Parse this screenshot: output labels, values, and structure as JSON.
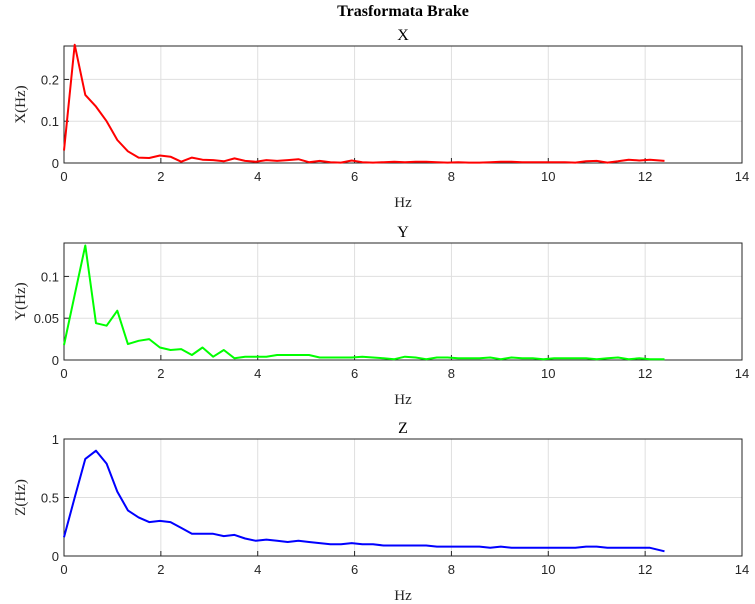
{
  "figure_title": "Trasformata Brake",
  "chart_data": [
    {
      "type": "line",
      "title": "X",
      "xlabel": "Hz",
      "ylabel": "X(Hz)",
      "xlim": [
        0,
        14
      ],
      "ylim": [
        0,
        0.28
      ],
      "xticks": [
        "0",
        "2",
        "4",
        "6",
        "8",
        "10",
        "12",
        "14"
      ],
      "yticks": [
        "0",
        "0.1",
        "0.2"
      ],
      "grid": true,
      "series": [
        {
          "color": "#ff0000",
          "x": [
            0,
            0.22,
            0.44,
            0.66,
            0.88,
            1.1,
            1.32,
            1.54,
            1.76,
            1.98,
            2.2,
            2.42,
            2.64,
            2.86,
            3.08,
            3.3,
            3.52,
            3.74,
            3.96,
            4.18,
            4.4,
            4.62,
            4.84,
            5.06,
            5.28,
            5.5,
            5.72,
            5.94,
            6.16,
            6.38,
            6.6,
            6.82,
            7.04,
            7.26,
            7.48,
            7.7,
            7.92,
            8.14,
            8.36,
            8.58,
            8.8,
            9.02,
            9.24,
            9.46,
            9.68,
            9.9,
            10.12,
            10.34,
            10.56,
            10.78,
            11.0,
            11.22,
            11.44,
            11.66,
            11.88,
            12.1,
            12.4
          ],
          "values": [
            0.03,
            0.283,
            0.163,
            0.135,
            0.1,
            0.055,
            0.028,
            0.013,
            0.012,
            0.018,
            0.015,
            0.003,
            0.013,
            0.008,
            0.007,
            0.004,
            0.011,
            0.005,
            0.003,
            0.007,
            0.005,
            0.007,
            0.009,
            0.002,
            0.005,
            0.002,
            0.001,
            0.006,
            0.002,
            0.001,
            0.002,
            0.003,
            0.002,
            0.003,
            0.003,
            0.002,
            0.001,
            0.002,
            0.001,
            0.001,
            0.002,
            0.003,
            0.003,
            0.002,
            0.002,
            0.002,
            0.002,
            0.002,
            0.001,
            0.004,
            0.005,
            0.001,
            0.004,
            0.008,
            0.006,
            0.008,
            0.005
          ]
        }
      ]
    },
    {
      "type": "line",
      "title": "Y",
      "xlabel": "Hz",
      "ylabel": "Y(Hz)",
      "xlim": [
        0,
        14
      ],
      "ylim": [
        0,
        0.14
      ],
      "xticks": [
        "0",
        "2",
        "4",
        "6",
        "8",
        "10",
        "12",
        "14"
      ],
      "yticks": [
        "0",
        "0.05",
        "0.1"
      ],
      "grid": true,
      "series": [
        {
          "color": "#00ff00",
          "x": [
            0,
            0.22,
            0.44,
            0.66,
            0.88,
            1.1,
            1.32,
            1.54,
            1.76,
            1.98,
            2.2,
            2.42,
            2.64,
            2.86,
            3.08,
            3.3,
            3.52,
            3.74,
            3.96,
            4.18,
            4.4,
            4.62,
            4.84,
            5.06,
            5.28,
            5.5,
            5.72,
            5.94,
            6.16,
            6.38,
            6.6,
            6.82,
            7.04,
            7.26,
            7.48,
            7.7,
            7.92,
            8.14,
            8.36,
            8.58,
            8.8,
            9.02,
            9.24,
            9.46,
            9.68,
            9.9,
            10.12,
            10.34,
            10.56,
            10.78,
            11.0,
            11.22,
            11.44,
            11.66,
            11.88,
            12.1,
            12.4
          ],
          "values": [
            0.018,
            0.078,
            0.137,
            0.044,
            0.041,
            0.059,
            0.019,
            0.023,
            0.025,
            0.015,
            0.012,
            0.013,
            0.006,
            0.015,
            0.004,
            0.012,
            0.002,
            0.004,
            0.004,
            0.004,
            0.006,
            0.006,
            0.006,
            0.006,
            0.003,
            0.003,
            0.003,
            0.003,
            0.004,
            0.003,
            0.002,
            0.001,
            0.004,
            0.003,
            0.001,
            0.003,
            0.003,
            0.002,
            0.002,
            0.002,
            0.003,
            0.001,
            0.003,
            0.002,
            0.002,
            0.001,
            0.002,
            0.002,
            0.002,
            0.002,
            0.001,
            0.002,
            0.003,
            0.001,
            0.002,
            0.001,
            0.001
          ]
        }
      ]
    },
    {
      "type": "line",
      "title": "Z",
      "xlabel": "Hz",
      "ylabel": "Z(Hz)",
      "xlim": [
        0,
        14
      ],
      "ylim": [
        0,
        1
      ],
      "xticks": [
        "0",
        "2",
        "4",
        "6",
        "8",
        "10",
        "12",
        "14"
      ],
      "yticks": [
        "0",
        "0.5",
        "1"
      ],
      "grid": true,
      "series": [
        {
          "color": "#0000ff",
          "x": [
            0,
            0.22,
            0.44,
            0.66,
            0.88,
            1.1,
            1.32,
            1.54,
            1.76,
            1.98,
            2.2,
            2.42,
            2.64,
            2.86,
            3.08,
            3.3,
            3.52,
            3.74,
            3.96,
            4.18,
            4.4,
            4.62,
            4.84,
            5.06,
            5.28,
            5.5,
            5.72,
            5.94,
            6.16,
            6.38,
            6.6,
            6.82,
            7.04,
            7.26,
            7.48,
            7.7,
            7.92,
            8.14,
            8.36,
            8.58,
            8.8,
            9.02,
            9.24,
            9.46,
            9.68,
            9.9,
            10.12,
            10.34,
            10.56,
            10.78,
            11.0,
            11.22,
            11.44,
            11.66,
            11.88,
            12.1,
            12.4
          ],
          "values": [
            0.16,
            0.5,
            0.83,
            0.9,
            0.79,
            0.55,
            0.39,
            0.33,
            0.29,
            0.3,
            0.29,
            0.24,
            0.19,
            0.19,
            0.19,
            0.17,
            0.18,
            0.15,
            0.13,
            0.14,
            0.13,
            0.12,
            0.13,
            0.12,
            0.11,
            0.1,
            0.1,
            0.11,
            0.1,
            0.1,
            0.09,
            0.09,
            0.09,
            0.09,
            0.09,
            0.08,
            0.08,
            0.08,
            0.08,
            0.08,
            0.07,
            0.08,
            0.07,
            0.07,
            0.07,
            0.07,
            0.07,
            0.07,
            0.07,
            0.08,
            0.08,
            0.07,
            0.07,
            0.07,
            0.07,
            0.07,
            0.04
          ]
        }
      ]
    }
  ]
}
